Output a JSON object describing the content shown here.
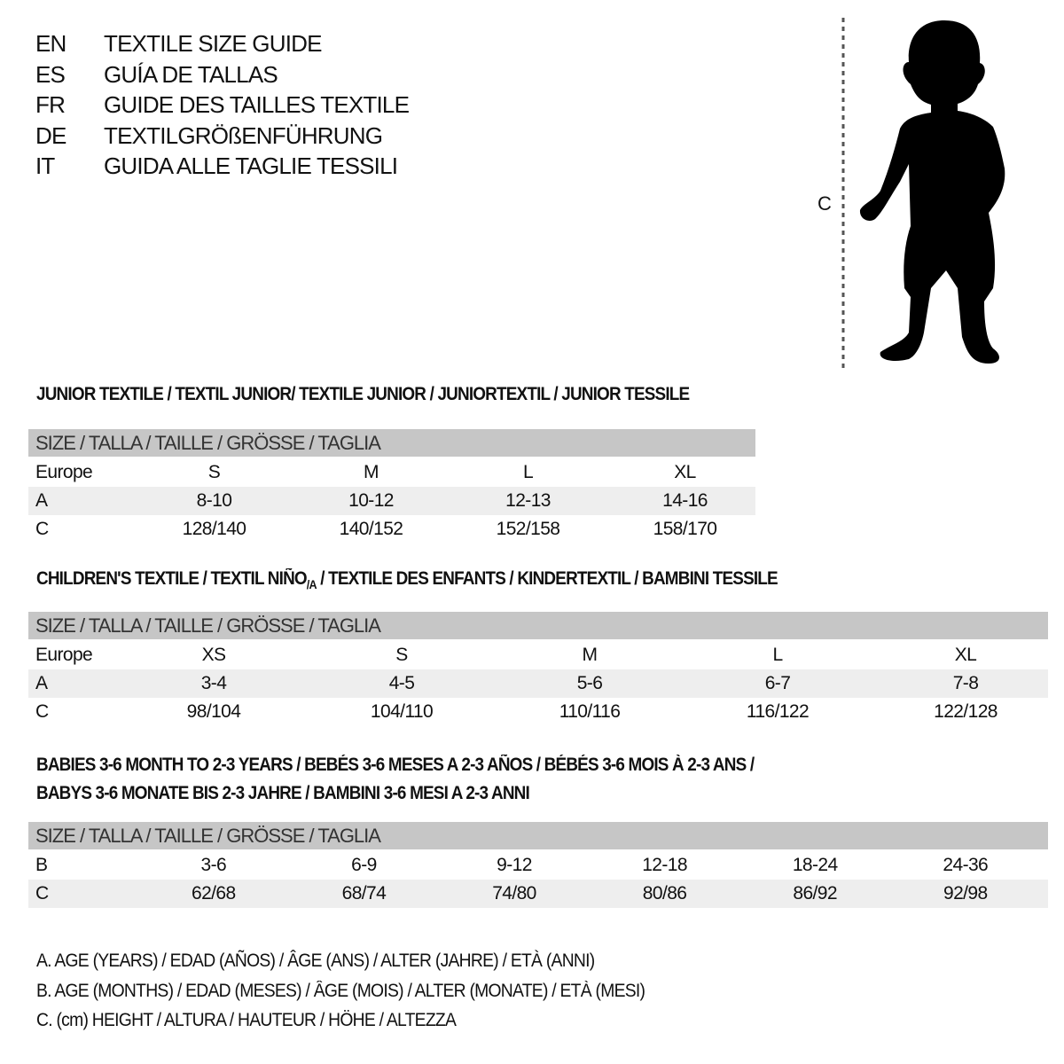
{
  "titles": [
    {
      "code": "EN",
      "text": "TEXTILE SIZE GUIDE"
    },
    {
      "code": "ES",
      "text": "GUÍA DE TALLAS"
    },
    {
      "code": "FR",
      "text": "GUIDE DES TAILLES TEXTILE"
    },
    {
      "code": "DE",
      "text": "TEXTILGRÖßENFÜHRUNG"
    },
    {
      "code": "IT",
      "text": "GUIDA ALLE TAGLIE TESSILI"
    }
  ],
  "figure": {
    "measure_label": "C"
  },
  "junior": {
    "title": "JUNIOR TEXTILE / TEXTIL JUNIOR/ TEXTILE JUNIOR / JUNIORTEXTIL / JUNIOR TESSILE",
    "header": "SIZE / TALLA / TAILLE / GRÖSSE / TAGLIA",
    "rows": [
      {
        "label": "Europe",
        "values": [
          "S",
          "M",
          "L",
          "XL"
        ]
      },
      {
        "label": "A",
        "values": [
          "8-10",
          "10-12",
          "12-13",
          "14-16"
        ]
      },
      {
        "label": "C",
        "values": [
          "128/140",
          "140/152",
          "152/158",
          "158/170"
        ]
      }
    ]
  },
  "children": {
    "title_a": "CHILDREN'S TEXTILE / TEXTIL NIÑO",
    "title_sub": "/A",
    "title_b": " / TEXTILE DES ENFANTS / KINDERTEXTIL / BAMBINI TESSILE",
    "header": "SIZE / TALLA / TAILLE / GRÖSSE / TAGLIA",
    "rows": [
      {
        "label": "Europe",
        "values": [
          "XS",
          "S",
          "M",
          "L",
          "XL"
        ]
      },
      {
        "label": "A",
        "values": [
          "3-4",
          "4-5",
          "5-6",
          "6-7",
          "7-8"
        ]
      },
      {
        "label": "C",
        "values": [
          "98/104",
          "104/110",
          "110/116",
          "116/122",
          "122/128"
        ]
      }
    ]
  },
  "babies": {
    "title_line1": "BABIES 3-6 MONTH TO 2-3 YEARS / BEBÉS 3-6 MESES A 2-3 AÑOS / BÉBÉS 3-6 MOIS À 2-3 ANS /",
    "title_line2": "BABYS 3-6 MONATE BIS 2-3 JAHRE / BAMBINI 3-6 MESI A 2-3 ANNI",
    "header": "SIZE / TALLA / TAILLE / GRÖSSE / TAGLIA",
    "rows": [
      {
        "label": "B",
        "values": [
          "3-6",
          "6-9",
          "9-12",
          "12-18",
          "18-24",
          "24-36"
        ]
      },
      {
        "label": "C",
        "values": [
          "62/68",
          "68/74",
          "74/80",
          "80/86",
          "86/92",
          "92/98"
        ]
      }
    ]
  },
  "legend": [
    "A. AGE (YEARS) / EDAD (AÑOS) / ÂGE (ANS) / ALTER (JAHRE) / ETÀ (ANNI)",
    "B. AGE (MONTHS) / EDAD (MESES) / ÂGE (MOIS) / ALTER (MONATE) / ETÀ (MESI)",
    "C. (cm) HEIGHT / ALTURA / HAUTEUR / HÖHE / ALTEZZA"
  ]
}
